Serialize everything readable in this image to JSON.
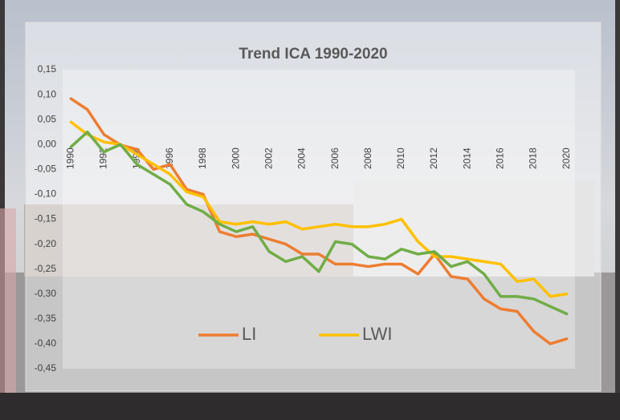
{
  "chart_data": {
    "type": "line",
    "title": "Trend ICA 1990-2020",
    "x": [
      1990,
      1991,
      1992,
      1993,
      1994,
      1995,
      1996,
      1997,
      1998,
      1999,
      2000,
      2001,
      2002,
      2003,
      2004,
      2005,
      2006,
      2007,
      2008,
      2009,
      2010,
      2011,
      2012,
      2013,
      2014,
      2015,
      2016,
      2017,
      2018,
      2019,
      2020
    ],
    "xlim": [
      1989.5,
      2020.5
    ],
    "xticks": [
      1990,
      1992,
      1994,
      1996,
      1998,
      2000,
      2002,
      2004,
      2006,
      2008,
      2010,
      2012,
      2014,
      2016,
      2018,
      2020
    ],
    "ylim": [
      -0.45,
      0.15
    ],
    "yticks": [
      {
        "value": 0.15,
        "label": "0,15"
      },
      {
        "value": 0.1,
        "label": "0,10"
      },
      {
        "value": 0.05,
        "label": "0,05"
      },
      {
        "value": 0,
        "label": "0,00"
      },
      {
        "value": -0.05,
        "label": "-0,05"
      },
      {
        "value": -0.1,
        "label": "-0,10"
      },
      {
        "value": -0.15,
        "label": "-0,15"
      },
      {
        "value": -0.2,
        "label": "-0,20"
      },
      {
        "value": -0.25,
        "label": "-0,25"
      },
      {
        "value": -0.3,
        "label": "-0,30"
      },
      {
        "value": -0.35,
        "label": "-0,35"
      },
      {
        "value": -0.4,
        "label": "-0,40"
      },
      {
        "value": -0.45,
        "label": "-0,45"
      }
    ],
    "grid": false,
    "legend": "bottom",
    "series": [
      {
        "name": "LI",
        "color": "#ed7d31",
        "values": [
          0.092,
          0.07,
          0.02,
          -0.001,
          -0.01,
          -0.05,
          -0.04,
          -0.09,
          -0.1,
          -0.175,
          -0.185,
          -0.18,
          -0.19,
          -0.2,
          -0.22,
          -0.22,
          -0.24,
          -0.24,
          -0.245,
          -0.24,
          -0.24,
          -0.26,
          -0.22,
          -0.265,
          -0.27,
          -0.31,
          -0.33,
          -0.335,
          -0.375,
          -0.4,
          -0.39
        ]
      },
      {
        "name": "LWI",
        "color": "#ffc000",
        "values": [
          0.045,
          0.02,
          0.005,
          0.0,
          -0.02,
          -0.04,
          -0.06,
          -0.095,
          -0.105,
          -0.155,
          -0.16,
          -0.155,
          -0.16,
          -0.155,
          -0.17,
          -0.165,
          -0.16,
          -0.165,
          -0.165,
          -0.16,
          -0.15,
          -0.195,
          -0.225,
          -0.225,
          -0.23,
          -0.235,
          -0.24,
          -0.275,
          -0.27,
          -0.305,
          -0.3
        ]
      },
      {
        "color": "#70ad47",
        "values": [
          -0.005,
          0.025,
          -0.015,
          0.0,
          -0.04,
          -0.06,
          -0.08,
          -0.12,
          -0.135,
          -0.16,
          -0.175,
          -0.165,
          -0.215,
          -0.235,
          -0.225,
          -0.255,
          -0.195,
          -0.2,
          -0.225,
          -0.23,
          -0.21,
          -0.22,
          -0.215,
          -0.245,
          -0.235,
          -0.26,
          -0.305,
          -0.305,
          -0.31,
          -0.325,
          -0.34
        ]
      }
    ]
  }
}
